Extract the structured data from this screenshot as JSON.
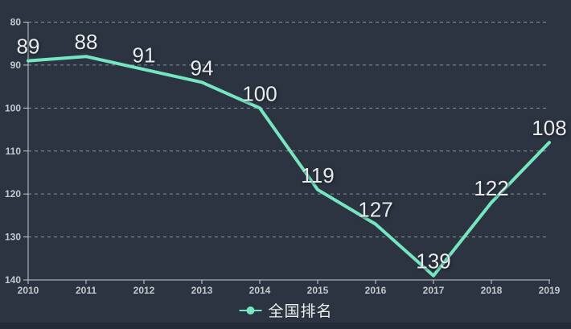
{
  "window": {
    "background_color": "#2b3440",
    "bottom_edge_color": "#232b36"
  },
  "chart_data": {
    "type": "line",
    "title": "",
    "xlabel": "",
    "ylabel": "",
    "categories": [
      "2010",
      "2011",
      "2012",
      "2013",
      "2014",
      "2015",
      "2016",
      "2017",
      "2018",
      "2019"
    ],
    "series": [
      {
        "name": "全国排名",
        "values": [
          89,
          88,
          91,
          94,
          100,
          119,
          127,
          139,
          122,
          108
        ],
        "color": "#75e6bf"
      }
    ],
    "point_labels_visible": true,
    "y_axis": {
      "min": 80,
      "max": 140,
      "step": 10,
      "inverted": true,
      "ticks": [
        "80",
        "90",
        "100",
        "110",
        "120",
        "130",
        "140"
      ]
    },
    "grid": {
      "horizontal_dashed": true,
      "color": "#8a919b"
    },
    "axis_color": "#c7cbd1",
    "tick_label_color": "#c6c9ce",
    "point_label_color": "#e9eaec",
    "legend": {
      "position": "bottom-center",
      "items": [
        {
          "label": "全国排名",
          "marker": "line-with-dot",
          "color": "#75e6bf"
        }
      ]
    }
  }
}
